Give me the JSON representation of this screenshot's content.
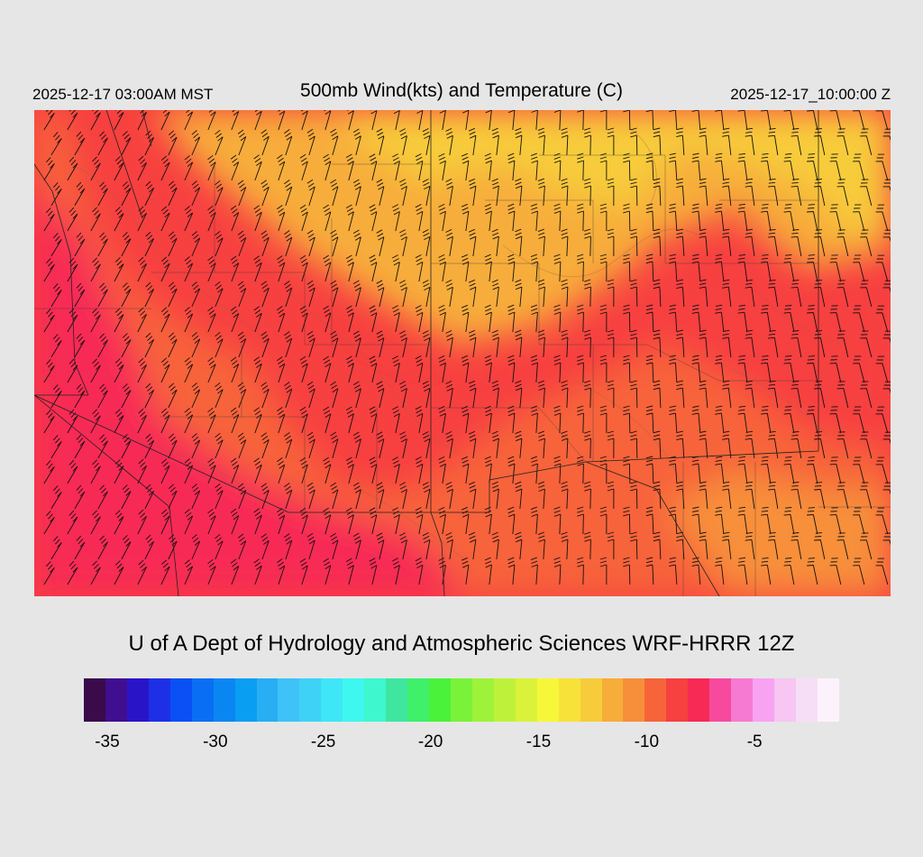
{
  "header": {
    "valid_local": "2025-12-17 03:00AM MST",
    "title": "500mb Wind(kts) and Temperature (C)",
    "valid_utc": "2025-12-17_10:00:00 Z"
  },
  "footer": {
    "credit": "U of A Dept of Hydrology and Atmospheric Sciences WRF-HRRR 12Z"
  },
  "colorbar": {
    "colors": [
      "#3a0a4a",
      "#3f0f8f",
      "#2a14c8",
      "#1e30e6",
      "#0a50f5",
      "#0a6ef5",
      "#0a86f2",
      "#0a9ef2",
      "#28aef2",
      "#3ec2f7",
      "#3ed2f7",
      "#3ee6f7",
      "#3ef7ef",
      "#3ef7cf",
      "#3ee6a0",
      "#3ef06a",
      "#4af23a",
      "#7af23a",
      "#9ef23a",
      "#bef23a",
      "#dbf23a",
      "#f7f73a",
      "#f7e23a",
      "#f7cc3a",
      "#f7ad3a",
      "#f78f3a",
      "#f7643a",
      "#f74040",
      "#f72a55",
      "#f74a9e",
      "#f77ad2",
      "#f7a3f2",
      "#f7c6f2",
      "#f7def7",
      "#fcf2fc"
    ],
    "ticks": [
      {
        "label": "-35",
        "frac": 0.031
      },
      {
        "label": "-30",
        "frac": 0.174
      },
      {
        "label": "-25",
        "frac": 0.317
      },
      {
        "label": "-20",
        "frac": 0.459
      },
      {
        "label": "-15",
        "frac": 0.602
      },
      {
        "label": "-10",
        "frac": 0.745
      },
      {
        "label": "-5",
        "frac": 0.888
      }
    ]
  },
  "map": {
    "field_colors": {
      "coldest": "#f72a55",
      "cold": "#f74040",
      "mid": "#f7643a",
      "warmer": "#f78f3a",
      "warm": "#f7ad3a",
      "warmest": "#f7cc3a"
    }
  }
}
